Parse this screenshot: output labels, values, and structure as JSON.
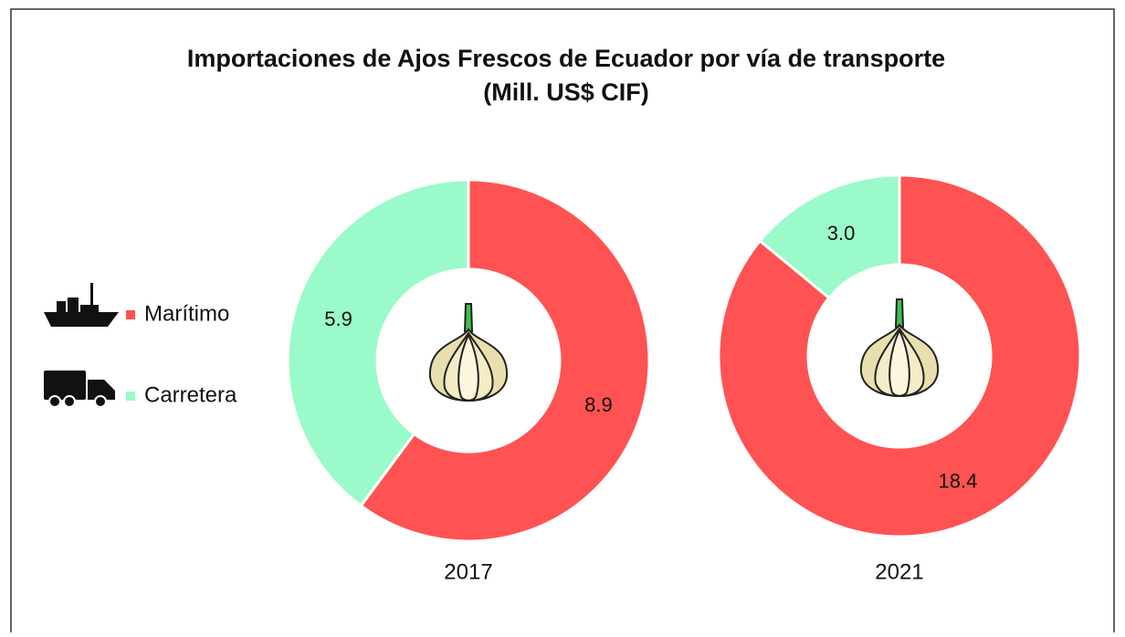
{
  "chart_data": {
    "type": "donut",
    "title": "Importaciones de Ajos Frescos de Ecuador por vía de transporte",
    "subtitle": "(Mill. US$ CIF)",
    "categories": [
      "Marítimo",
      "Carretera"
    ],
    "colors": [
      "#ff5252",
      "#9afac9"
    ],
    "charts": [
      {
        "name": "2017",
        "values": [
          8.9,
          5.9
        ]
      },
      {
        "name": "2021",
        "values": [
          18.4,
          3.0
        ],
        "value_labels": [
          "18.4",
          "3.0"
        ]
      }
    ]
  }
}
